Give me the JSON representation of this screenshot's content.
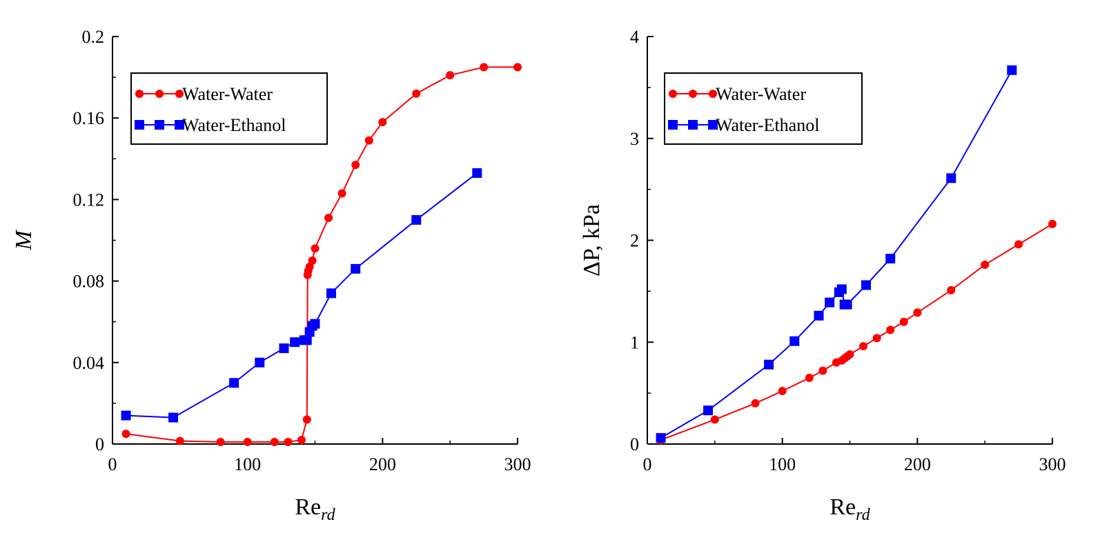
{
  "chart_data": [
    {
      "type": "line",
      "xlabel": "Re",
      "xlabel_sub": "rd",
      "ylabel": "M",
      "xlim": [
        0,
        300
      ],
      "ylim": [
        0,
        0.2
      ],
      "xticks": [
        0,
        100,
        200,
        300
      ],
      "xtick_labels": [
        "0",
        "100",
        "200",
        "300"
      ],
      "yticks": [
        0,
        0.04,
        0.08,
        0.12,
        0.16,
        0.2
      ],
      "ytick_labels": [
        "0",
        "0.04",
        "0.08",
        "0.12",
        "0.16",
        "0.2"
      ],
      "grid": false,
      "legend_position": "top-left",
      "series": [
        {
          "name": "Water-Water",
          "color": "#ff0000",
          "marker": "circle",
          "x": [
            10,
            50,
            80,
            100,
            120,
            130,
            140,
            144,
            144.5,
            145,
            146,
            148,
            150,
            160,
            170,
            180,
            190,
            200,
            225,
            250,
            275,
            300
          ],
          "y": [
            0.005,
            0.0015,
            0.001,
            0.001,
            0.001,
            0.001,
            0.002,
            0.012,
            0.083,
            0.085,
            0.087,
            0.09,
            0.096,
            0.111,
            0.123,
            0.137,
            0.149,
            0.158,
            0.172,
            0.181,
            0.185,
            0.185
          ]
        },
        {
          "name": "Water-Ethanol",
          "color": "#0000ff",
          "marker": "square",
          "x": [
            10,
            45,
            90,
            109,
            127,
            135,
            142,
            144,
            146,
            148,
            150,
            162,
            180,
            225,
            270
          ],
          "y": [
            0.014,
            0.013,
            0.03,
            0.04,
            0.047,
            0.05,
            0.051,
            0.051,
            0.055,
            0.058,
            0.059,
            0.074,
            0.086,
            0.11,
            0.133
          ]
        }
      ]
    },
    {
      "type": "line",
      "xlabel": "Re",
      "xlabel_sub": "rd",
      "ylabel": "ΔP, kPa",
      "xlim": [
        0,
        300
      ],
      "ylim": [
        0,
        4
      ],
      "xticks": [
        0,
        100,
        200,
        300
      ],
      "xtick_labels": [
        "0",
        "100",
        "200",
        "300"
      ],
      "yticks": [
        0,
        1,
        2,
        3,
        4
      ],
      "ytick_labels": [
        "0",
        "1",
        "2",
        "3",
        "4"
      ],
      "grid": false,
      "legend_position": "top-left",
      "series": [
        {
          "name": "Water-Water",
          "color": "#ff0000",
          "marker": "circle",
          "x": [
            10,
            50,
            80,
            100,
            120,
            130,
            140,
            144,
            146,
            148,
            150,
            160,
            170,
            180,
            190,
            200,
            225,
            250,
            275,
            300
          ],
          "y": [
            0.04,
            0.24,
            0.4,
            0.52,
            0.65,
            0.72,
            0.8,
            0.82,
            0.84,
            0.86,
            0.88,
            0.96,
            1.04,
            1.12,
            1.2,
            1.29,
            1.51,
            1.76,
            1.96,
            2.16
          ]
        },
        {
          "name": "Water-Ethanol",
          "color": "#0000ff",
          "marker": "square",
          "x": [
            10,
            45,
            90,
            109,
            127,
            135,
            142,
            144,
            146,
            148,
            162,
            180,
            225,
            270
          ],
          "y": [
            0.06,
            0.33,
            0.78,
            1.01,
            1.26,
            1.39,
            1.49,
            1.52,
            1.37,
            1.37,
            1.56,
            1.82,
            2.61,
            3.67
          ]
        }
      ]
    }
  ]
}
